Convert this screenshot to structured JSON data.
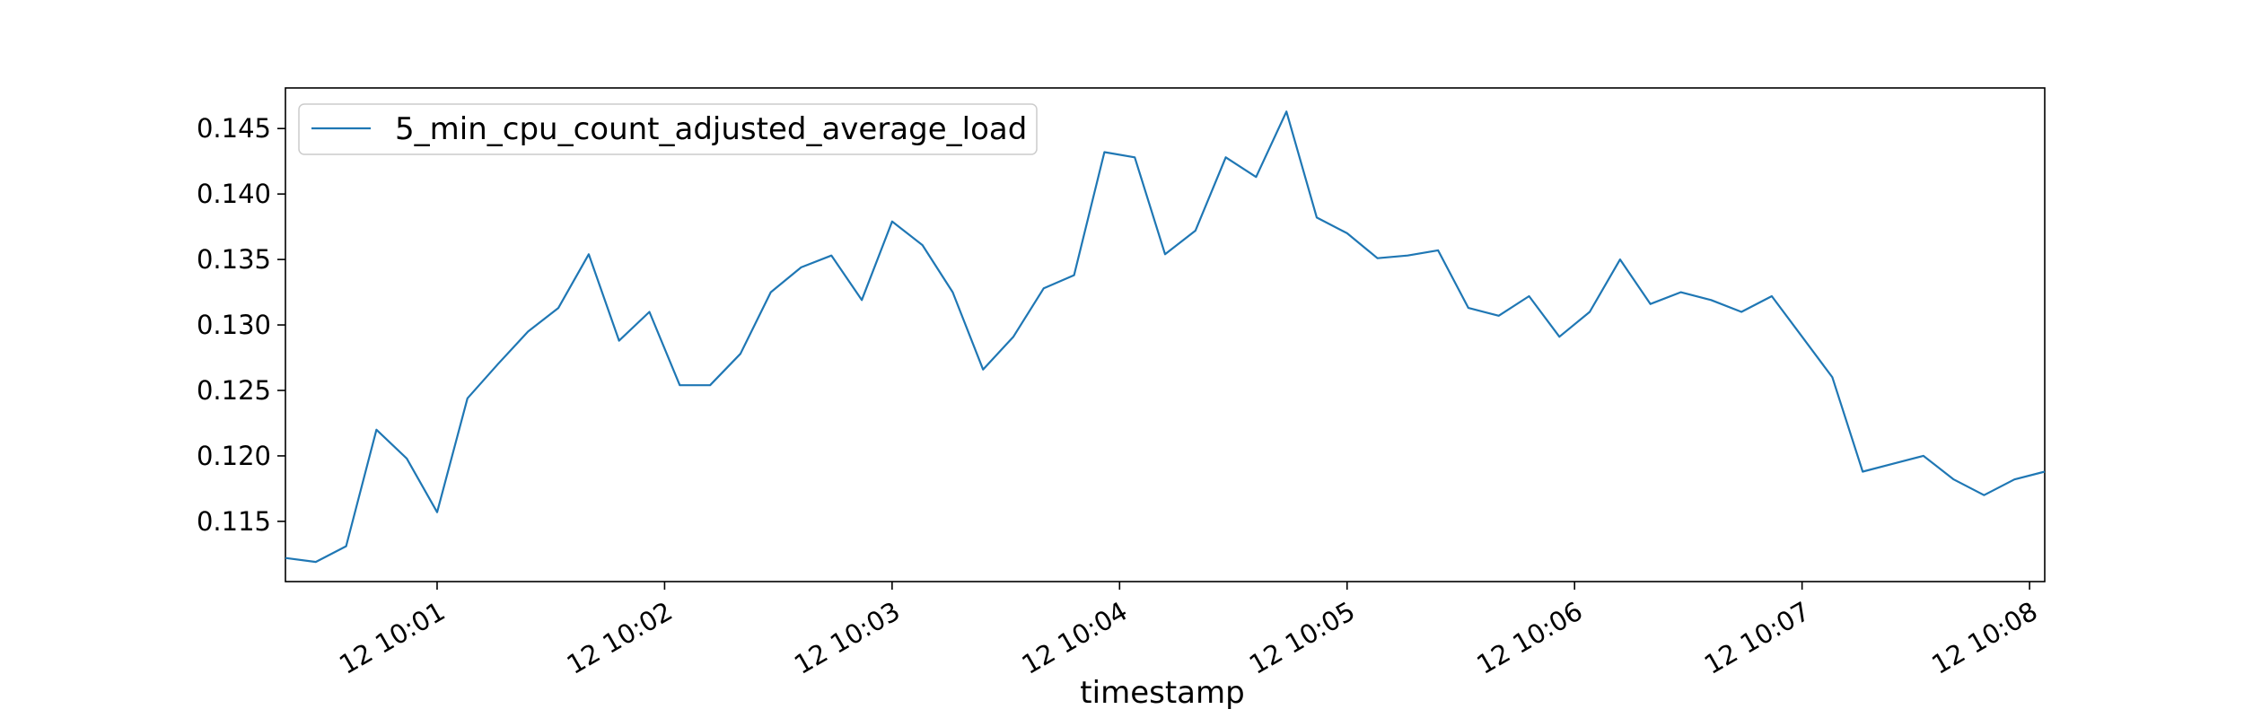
{
  "chart_data": {
    "type": "line",
    "title": "",
    "xlabel": "timestamp",
    "ylabel": "",
    "x_ticks": [
      "12 10:01",
      "12 10:02",
      "12 10:03",
      "12 10:04",
      "12 10:05",
      "12 10:06",
      "12 10:07",
      "12 10:08"
    ],
    "y_ticks": [
      "0.115",
      "0.120",
      "0.125",
      "0.130",
      "0.135",
      "0.140",
      "0.145"
    ],
    "legend": {
      "placement": "upper-left"
    },
    "grid": false,
    "color": "#1f77b4",
    "series": [
      {
        "name": "5_min_cpu_count_adjusted_average_load",
        "points": [
          [
            "10:00:20",
            0.1122
          ],
          [
            "10:00:28",
            0.1119
          ],
          [
            "10:00:36",
            0.1131
          ],
          [
            "10:00:44",
            0.122
          ],
          [
            "10:00:52",
            0.1198
          ],
          [
            "10:01:00",
            0.1157
          ],
          [
            "10:01:08",
            0.1244
          ],
          [
            "10:01:16",
            0.127
          ],
          [
            "10:01:24",
            0.1295
          ],
          [
            "10:01:32",
            0.1313
          ],
          [
            "10:01:40",
            0.1354
          ],
          [
            "10:01:48",
            0.1288
          ],
          [
            "10:01:56",
            0.131
          ],
          [
            "10:02:04",
            0.1254
          ],
          [
            "10:02:12",
            0.1254
          ],
          [
            "10:02:20",
            0.1278
          ],
          [
            "10:02:28",
            0.1325
          ],
          [
            "10:02:36",
            0.1344
          ],
          [
            "10:02:44",
            0.1353
          ],
          [
            "10:02:52",
            0.1319
          ],
          [
            "10:03:00",
            0.1379
          ],
          [
            "10:03:08",
            0.1361
          ],
          [
            "10:03:16",
            0.1325
          ],
          [
            "10:03:24",
            0.1266
          ],
          [
            "10:03:32",
            0.1291
          ],
          [
            "10:03:40",
            0.1328
          ],
          [
            "10:03:48",
            0.1338
          ],
          [
            "10:03:56",
            0.1432
          ],
          [
            "10:04:04",
            0.1428
          ],
          [
            "10:04:12",
            0.1354
          ],
          [
            "10:04:20",
            0.1372
          ],
          [
            "10:04:28",
            0.1428
          ],
          [
            "10:04:36",
            0.1413
          ],
          [
            "10:04:44",
            0.1463
          ],
          [
            "10:04:52",
            0.1382
          ],
          [
            "10:05:00",
            0.137
          ],
          [
            "10:05:08",
            0.1351
          ],
          [
            "10:05:16",
            0.1353
          ],
          [
            "10:05:24",
            0.1357
          ],
          [
            "10:05:32",
            0.1313
          ],
          [
            "10:05:40",
            0.1307
          ],
          [
            "10:05:48",
            0.1322
          ],
          [
            "10:05:56",
            0.1291
          ],
          [
            "10:06:04",
            0.131
          ],
          [
            "10:06:12",
            0.135
          ],
          [
            "10:06:20",
            0.1316
          ],
          [
            "10:06:28",
            0.1325
          ],
          [
            "10:06:36",
            0.1319
          ],
          [
            "10:06:44",
            0.131
          ],
          [
            "10:06:52",
            0.1322
          ],
          [
            "10:07:00",
            0.1291
          ],
          [
            "10:07:08",
            0.126
          ],
          [
            "10:07:16",
            0.1188
          ],
          [
            "10:07:24",
            0.1194
          ],
          [
            "10:07:32",
            0.12
          ],
          [
            "10:07:40",
            0.1182
          ],
          [
            "10:07:48",
            0.117
          ],
          [
            "10:07:56",
            0.1182
          ],
          [
            "10:08:04",
            0.1188
          ]
        ]
      }
    ],
    "xlim": [
      "10:00:20",
      "10:08:04"
    ],
    "ylim": [
      0.1104,
      0.1481
    ]
  }
}
